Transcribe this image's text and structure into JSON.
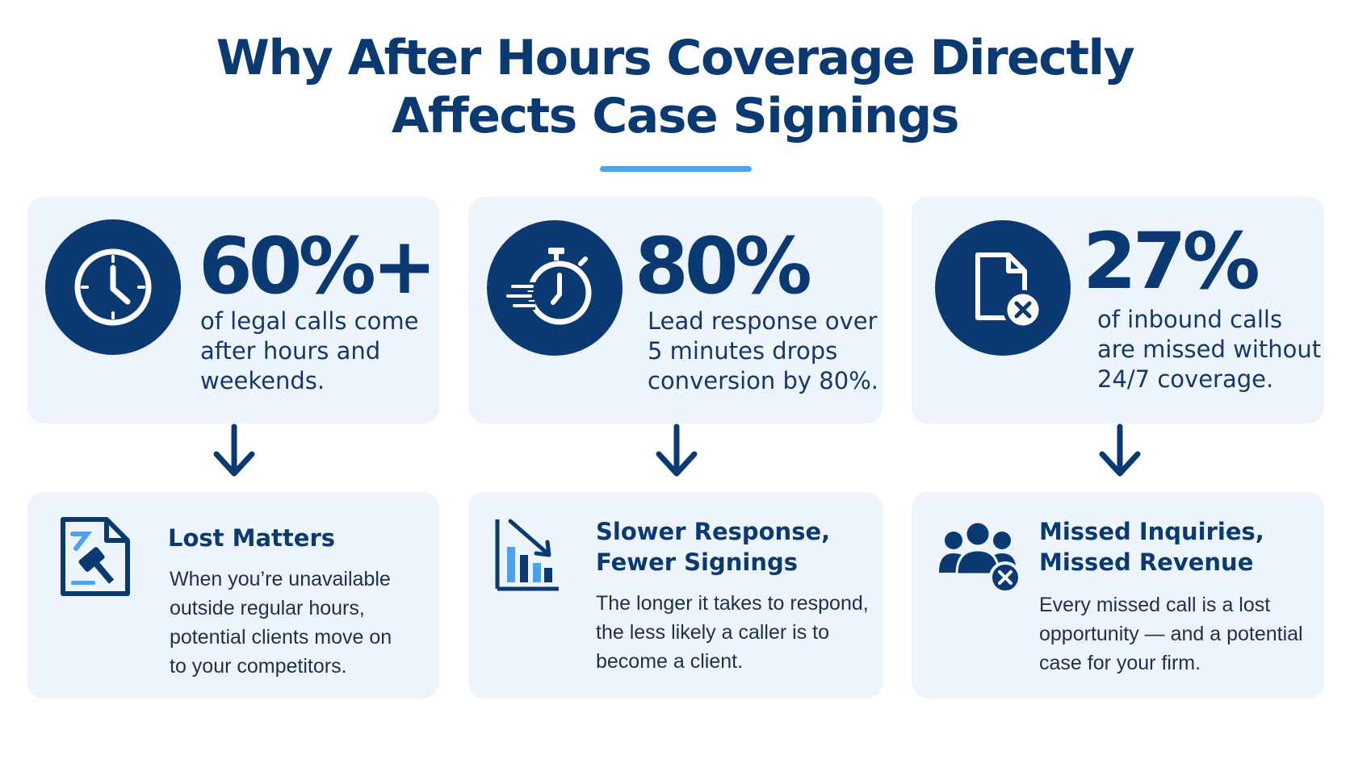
{
  "title": {
    "line1": "Why After Hours Coverage Directly",
    "line2": "Affects Case Signings"
  },
  "stats": [
    {
      "icon": "clock-icon",
      "value": "60%+",
      "lines": [
        "of legal calls come",
        "after hours and",
        "weekends."
      ]
    },
    {
      "icon": "stopwatch-icon",
      "value": "80%",
      "lines": [
        "Lead response over",
        "5 minutes drops",
        "conversion by 80%."
      ]
    },
    {
      "icon": "missed-document-icon",
      "value": "27%",
      "lines": [
        "of inbound calls",
        "are missed without",
        "24/7 coverage."
      ]
    }
  ],
  "impacts": [
    {
      "icon": "gavel-document-icon",
      "title_lines": [
        "Lost Matters"
      ],
      "lines": [
        "When you’re unavailable",
        "outside regular hours,",
        "potential clients move on",
        "to your competitors."
      ]
    },
    {
      "icon": "declining-chart-icon",
      "title_lines": [
        "Slower Response,",
        "Fewer Signings"
      ],
      "lines": [
        "The longer it takes to respond,",
        "the less likely a caller is to",
        "become a client."
      ]
    },
    {
      "icon": "missed-people-icon",
      "title_lines": [
        "Missed Inquiries,",
        "Missed Revenue"
      ],
      "lines": [
        "Every missed call is a lost",
        "opportunity — and a potential",
        "case for your firm."
      ]
    }
  ],
  "colors": {
    "navy": "#0b3a73",
    "accent": "#4aa3ec",
    "card": "#edf4fb"
  }
}
